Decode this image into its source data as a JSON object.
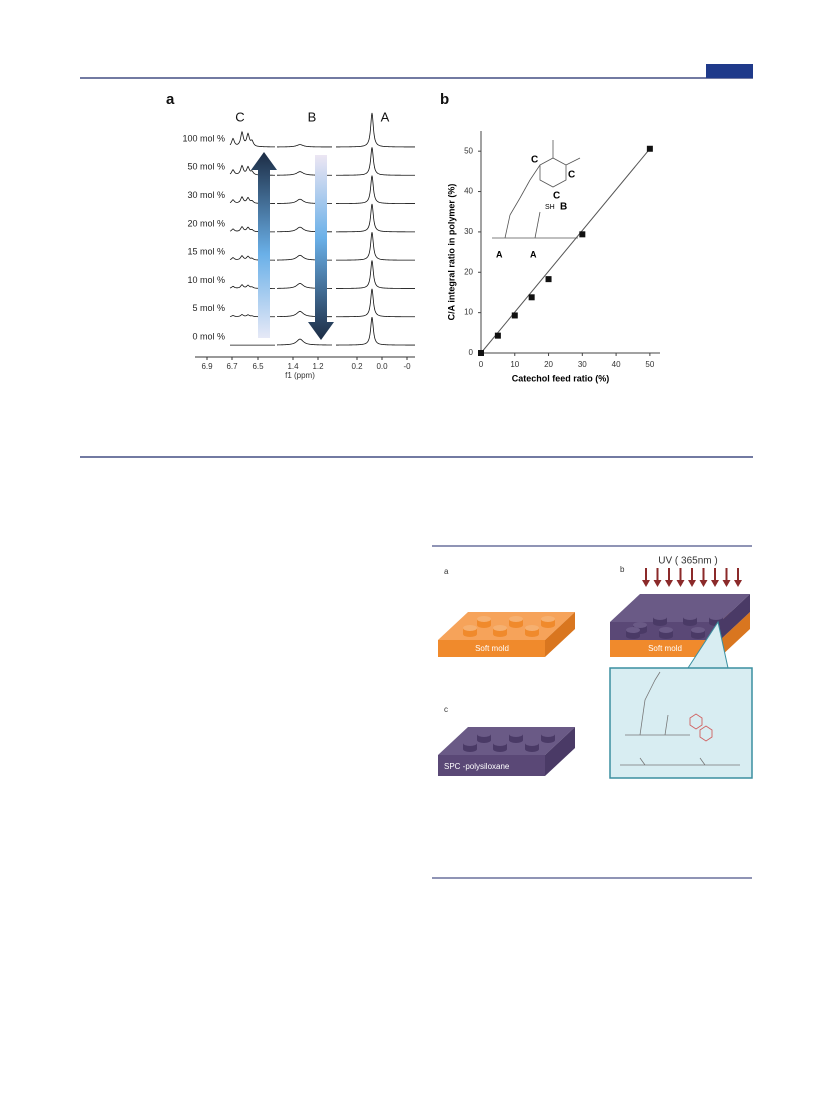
{
  "figure_1": {
    "panel_a": {
      "label": "a",
      "peak_labels": [
        "C",
        "B",
        "A"
      ],
      "rows": [
        "100 mol %",
        "50 mol %",
        "30 mol %",
        "20 mol %",
        "15 mol %",
        "10 mol %",
        "5 mol %",
        "0 mol %"
      ],
      "axis_ticks": [
        "6.9",
        "6.7",
        "6.5",
        "1.4",
        "1.2",
        "0.2",
        "0.0",
        "-0"
      ],
      "axis_title": "f1 (ppm)"
    },
    "panel_b": {
      "label": "b",
      "structure_labels": [
        "C",
        "C",
        "C",
        "SH",
        "B",
        "A",
        "A"
      ]
    }
  },
  "chart_data": {
    "type": "scatter",
    "x": [
      0,
      5,
      10,
      15,
      20,
      30,
      50
    ],
    "values": [
      0,
      4.3,
      9.3,
      13.8,
      18.3,
      29.4,
      50.6
    ],
    "fit_line": {
      "x": [
        0,
        50
      ],
      "y": [
        0,
        50.6
      ]
    },
    "color": "#111111",
    "xlim": [
      0,
      53
    ],
    "ylim": [
      0,
      55
    ],
    "xticks": [
      0,
      10,
      20,
      30,
      40,
      50
    ],
    "yticks": [
      0,
      10,
      20,
      30,
      40,
      50
    ],
    "x_label": "Catechol feed ratio (%)",
    "y_label": "C/A integral ratio in polymer (%)"
  },
  "figure_2": {
    "panel_labels": [
      "a",
      "b",
      "c"
    ],
    "uv_label": "UV ( 365nm )",
    "mold_labels": [
      "Soft mold",
      "Soft mold"
    ],
    "product_label": "SPC -polysiloxane"
  }
}
